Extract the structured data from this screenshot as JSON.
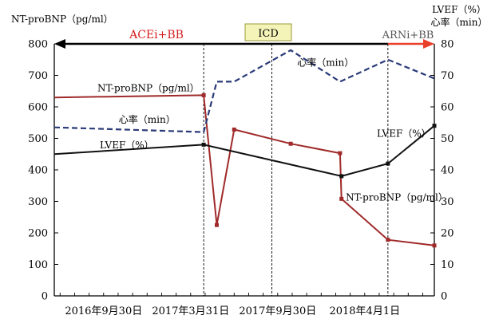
{
  "chart_data": {
    "type": "line",
    "left_axis_title": "NT-proBNP（pg/ml）",
    "right_axis_title_line1": "LVEF（%）",
    "right_axis_title_line2": "心率（min）",
    "x_ticks": [
      {
        "label": "2016年9月30日",
        "x": 1
      },
      {
        "label": "2017年3月31日",
        "x": 7
      },
      {
        "label": "2017年9月30日",
        "x": 13
      },
      {
        "label": "2018年4月1日",
        "x": 19
      }
    ],
    "xlim": [
      -2.4,
      23.8
    ],
    "left_ylim": [
      0,
      800
    ],
    "left_ticks": [
      0,
      100,
      200,
      300,
      400,
      500,
      600,
      700,
      800
    ],
    "right_ylim": [
      0,
      80
    ],
    "right_ticks": [
      0,
      10,
      20,
      30,
      40,
      50,
      60,
      70,
      80
    ],
    "therapy_arrows": [
      {
        "label": "ACEi+BB",
        "start": -2.4,
        "end": 20.6,
        "color": "#000000",
        "label_color": "#d42020",
        "head": "left"
      },
      {
        "label": "ARNi+BB",
        "start": 20.6,
        "end": 23.8,
        "color": "#e8402a",
        "label_color": "#555555",
        "head": "right"
      }
    ],
    "icd_label": "ICD",
    "event_lines": [
      7.9,
      12.6,
      20.6
    ],
    "series": [
      {
        "name": "NT-proBNP（pg/ml）",
        "axis": "left",
        "color": "#a02a2a",
        "style": "solid",
        "markers": true,
        "points": [
          [
            -2.4,
            630
          ],
          [
            7.9,
            637
          ],
          [
            8.8,
            225
          ],
          [
            10.0,
            528
          ],
          [
            13.9,
            483
          ],
          [
            17.3,
            453
          ],
          [
            17.4,
            308
          ],
          [
            20.6,
            178
          ],
          [
            23.8,
            160
          ]
        ],
        "label_near_start": {
          "x": 7.6,
          "y": 650,
          "anchor": "end"
        },
        "label_near_end": {
          "x": 17.7,
          "y": 303,
          "anchor": "start"
        }
      },
      {
        "name": "心率（min）",
        "axis": "right",
        "color": "#2a3a78",
        "style": "dashed",
        "markers": false,
        "points": [
          [
            -2.4,
            53.5
          ],
          [
            7.9,
            52
          ],
          [
            8.8,
            68
          ],
          [
            10.0,
            68
          ],
          [
            13.9,
            78
          ],
          [
            17.3,
            68
          ],
          [
            20.6,
            75
          ],
          [
            23.8,
            69
          ]
        ],
        "label_near_start": {
          "x": 4.0,
          "y": 55,
          "anchor": "middle"
        },
        "label_near_end": {
          "x": 16.3,
          "y": 73,
          "anchor": "middle"
        }
      },
      {
        "name": "LVEF（%）",
        "axis": "right",
        "color": "#111111",
        "style": "solid",
        "markers": true,
        "points": [
          [
            -2.4,
            45
          ],
          [
            7.9,
            48
          ],
          [
            17.4,
            38
          ],
          [
            20.6,
            42
          ],
          [
            23.8,
            54
          ]
        ],
        "label_near_start": {
          "x": 2.6,
          "y": 46.8,
          "anchor": "middle"
        },
        "label_near_end": {
          "x": 21.7,
          "y": 50.5,
          "anchor": "middle"
        }
      }
    ]
  }
}
